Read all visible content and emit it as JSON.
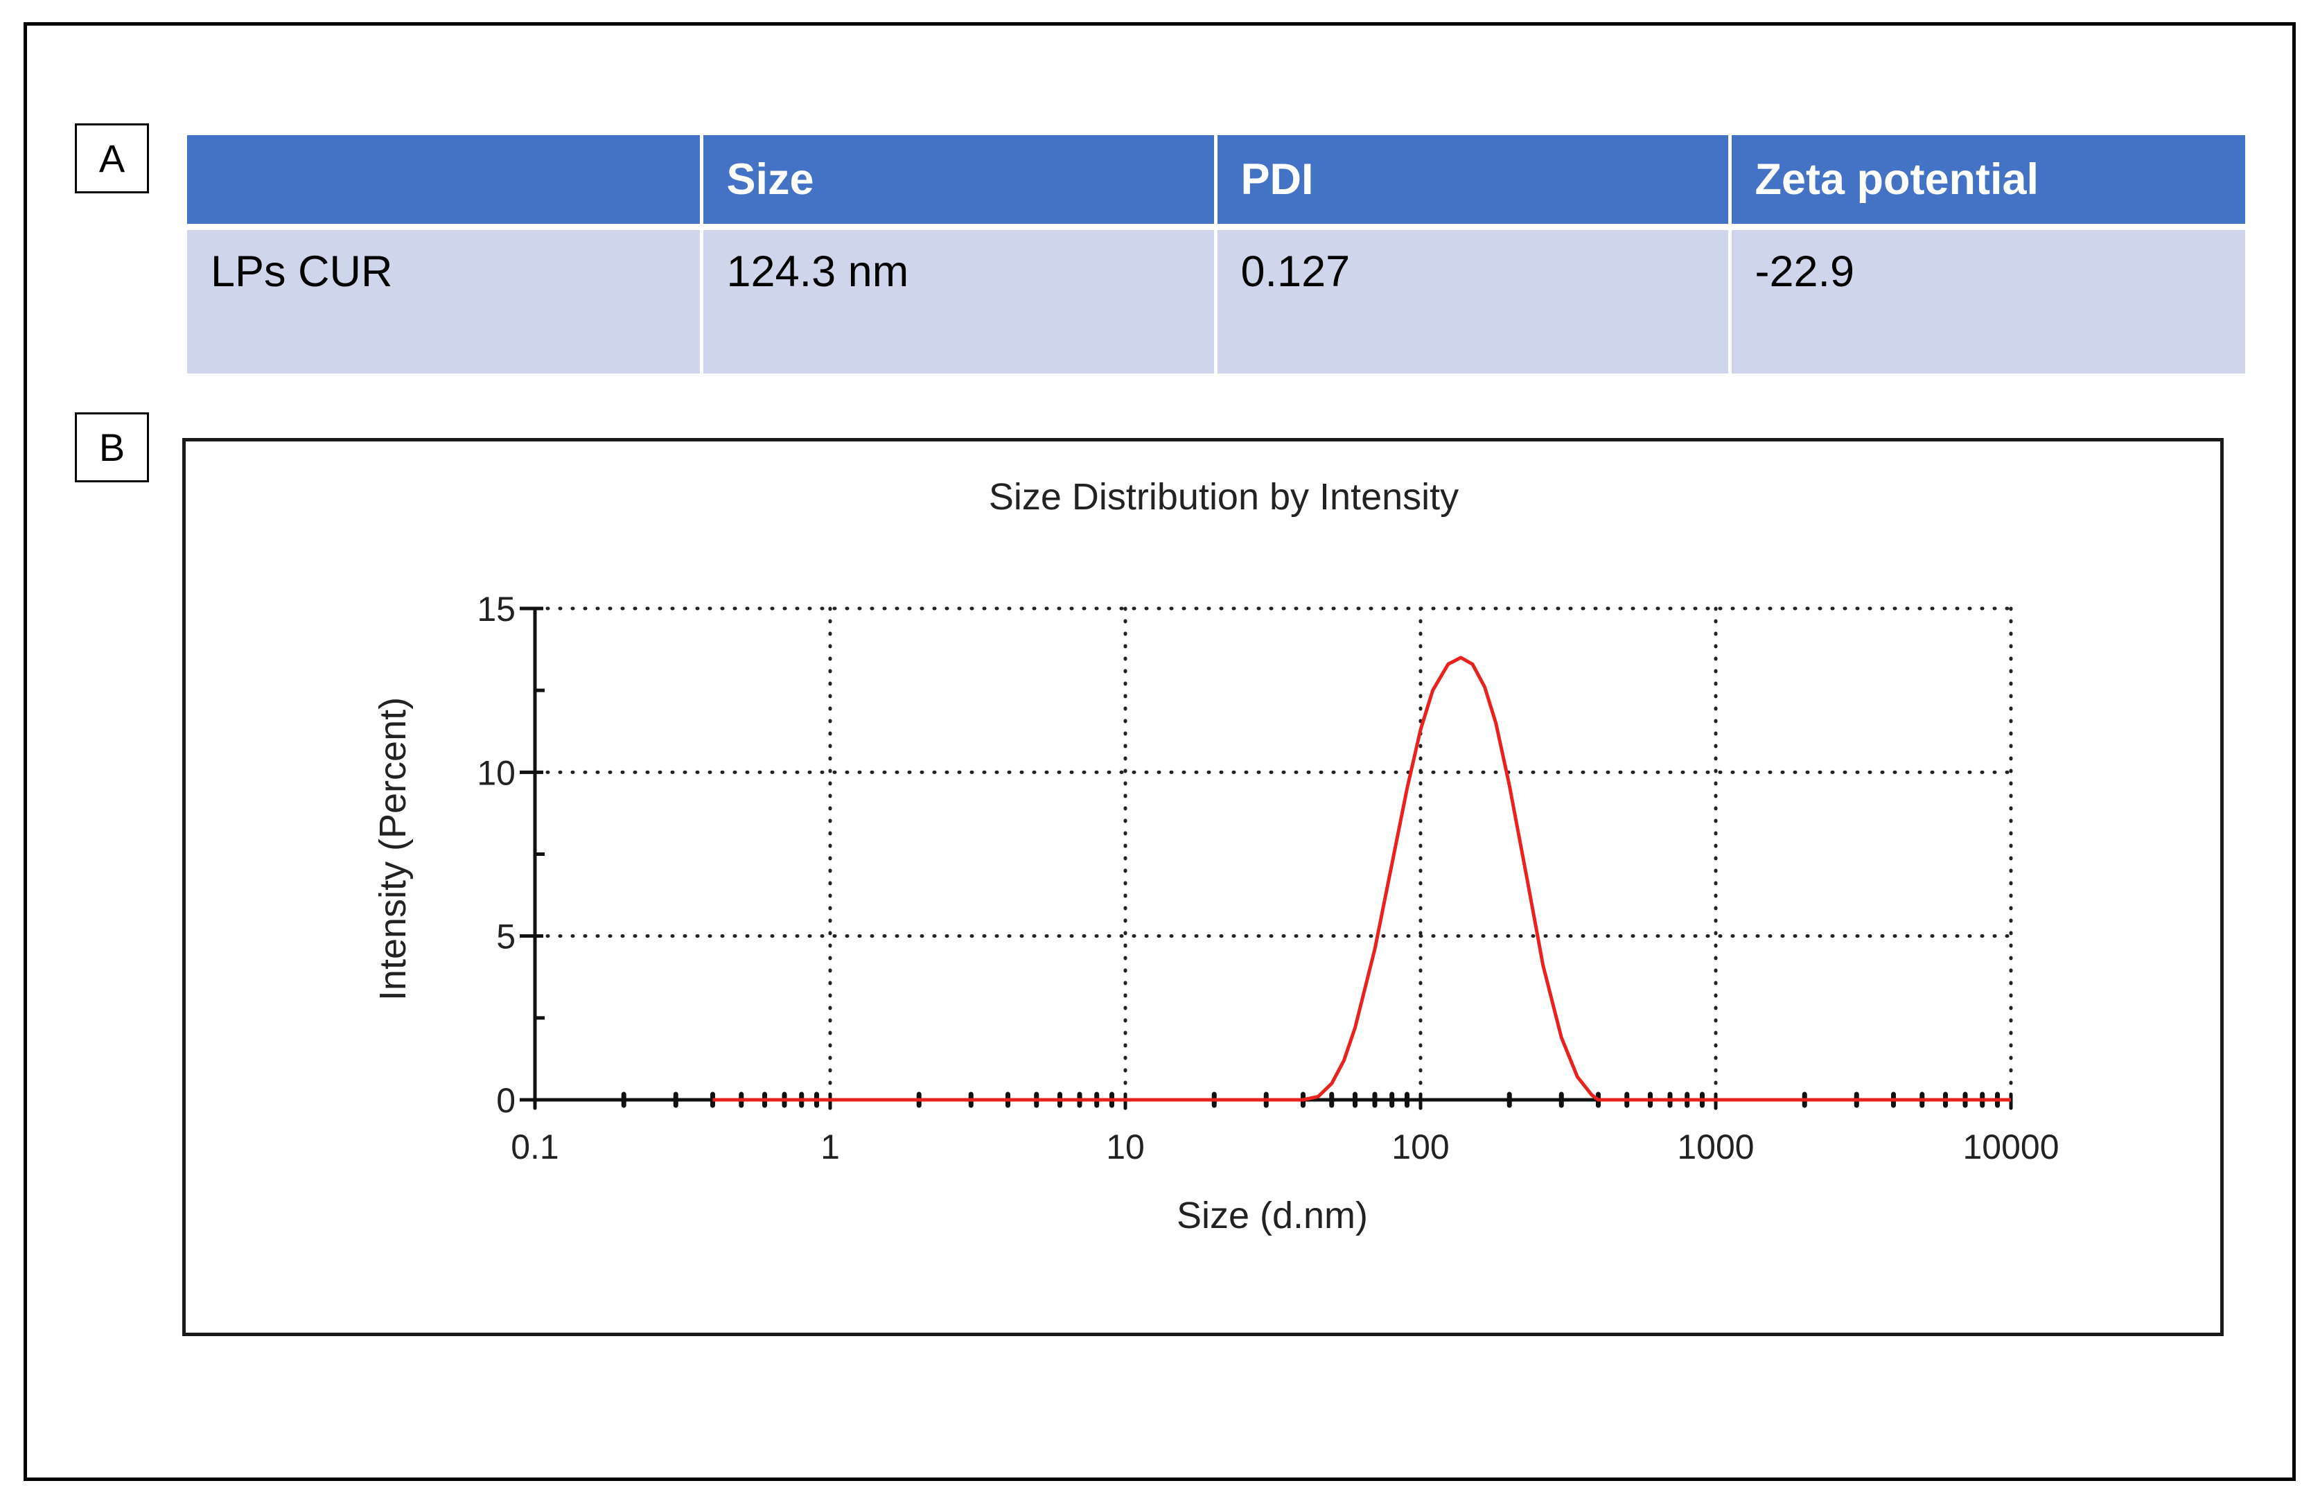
{
  "panels": {
    "a_label": "A",
    "b_label": "B"
  },
  "table": {
    "headers": [
      "",
      "Size",
      "PDI",
      "Zeta potential"
    ],
    "rows": [
      [
        "LPs CUR",
        "124.3 nm",
        "0.127",
        "-22.9"
      ]
    ]
  },
  "chart_data": {
    "type": "line",
    "title": "Size Distribution by Intensity",
    "xlabel": "Size (d.nm)",
    "ylabel": "Intensity (Percent)",
    "x_scale": "log",
    "xlim": [
      0.1,
      10000
    ],
    "ylim": [
      0,
      15
    ],
    "x_ticks": [
      "0.1",
      "1",
      "10",
      "100",
      "1000",
      "10000"
    ],
    "y_ticks": [
      "0",
      "5",
      "10",
      "15"
    ],
    "grid": true,
    "line_color": "#e8231f",
    "series": [
      {
        "x": [
          0.4,
          1,
          10,
          40,
          45,
          50,
          55,
          60,
          70,
          80,
          90,
          100,
          110,
          124,
          137,
          150,
          165,
          180,
          200,
          230,
          260,
          300,
          340,
          380,
          400,
          1000,
          10000
        ],
        "y": [
          0,
          0,
          0,
          0,
          0.1,
          0.5,
          1.2,
          2.2,
          4.6,
          7.2,
          9.5,
          11.3,
          12.5,
          13.3,
          13.5,
          13.3,
          12.6,
          11.5,
          9.6,
          6.7,
          4.1,
          1.9,
          0.7,
          0.15,
          0,
          0,
          0
        ]
      }
    ]
  }
}
